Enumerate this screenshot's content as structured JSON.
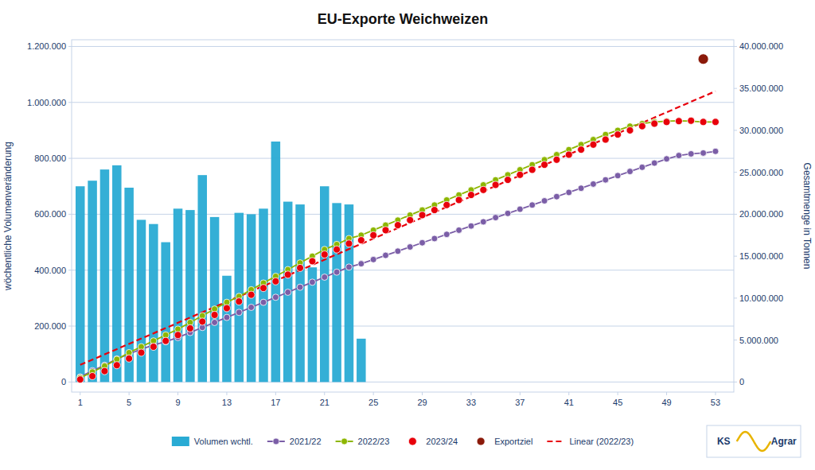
{
  "chart_data": {
    "type": "bar",
    "title": "EU-Exporte Weichweizen",
    "ylabel": "wöchentliche Volumenveränderung",
    "y2label": "Gesamtmenge in Tonnen",
    "annotations": [
      "KS",
      "Agrar"
    ],
    "series": [
      {
        "name": "Volumen wchtl.",
        "type": "bar",
        "color": "#29ABD4",
        "x": [
          1,
          2,
          3,
          4,
          5,
          6,
          7,
          8,
          9,
          10,
          11,
          12,
          13,
          14,
          15,
          16,
          17,
          18,
          19,
          20,
          21,
          22,
          23,
          24
        ],
        "values": [
          700000,
          720000,
          760000,
          775000,
          695000,
          580000,
          565000,
          500000,
          620000,
          615000,
          740000,
          590000,
          380000,
          605000,
          600000,
          620000,
          860000,
          645000,
          635000,
          410000,
          700000,
          640000,
          635000,
          155000
        ]
      },
      {
        "name": "2021/22",
        "type": "line",
        "axis": "y2",
        "color": "#7B5EA7",
        "marker": "circle",
        "line_style": "solid",
        "x": [
          1,
          2,
          3,
          4,
          5,
          6,
          7,
          8,
          9,
          10,
          11,
          12,
          13,
          14,
          15,
          16,
          17,
          18,
          19,
          20,
          21,
          22,
          23,
          24,
          25,
          26,
          27,
          28,
          29,
          30,
          31,
          32,
          33,
          34,
          35,
          36,
          37,
          38,
          39,
          40,
          41,
          42,
          43,
          44,
          45,
          46,
          47,
          48,
          49,
          50,
          51,
          52,
          53
        ],
        "values": [
          600000,
          1350000,
          2000000,
          2750000,
          3350000,
          3900000,
          4400000,
          4800000,
          5300000,
          5900000,
          6500000,
          7100000,
          7700000,
          8300000,
          8900000,
          9500000,
          10100000,
          10700000,
          11300000,
          11900000,
          12500000,
          13100000,
          13700000,
          14100000,
          14600000,
          15100000,
          15600000,
          16100000,
          16600000,
          17100000,
          17600000,
          18100000,
          18600000,
          19100000,
          19600000,
          20100000,
          20600000,
          21100000,
          21600000,
          22100000,
          22600000,
          23100000,
          23600000,
          24100000,
          24600000,
          25100000,
          25600000,
          26100000,
          26600000,
          27000000,
          27200000,
          27300000,
          27500000
        ]
      },
      {
        "name": "2022/23",
        "type": "line",
        "axis": "y2",
        "color": "#8DB600",
        "marker": "circle",
        "line_style": "solid",
        "x": [
          1,
          2,
          3,
          4,
          5,
          6,
          7,
          8,
          9,
          10,
          11,
          12,
          13,
          14,
          15,
          16,
          17,
          18,
          19,
          20,
          21,
          22,
          23,
          24,
          25,
          26,
          27,
          28,
          29,
          30,
          31,
          32,
          33,
          34,
          35,
          36,
          37,
          38,
          39,
          40,
          41,
          42,
          43,
          44,
          45,
          46,
          47,
          48,
          49,
          50,
          51,
          52,
          53
        ],
        "values": [
          500000,
          1200000,
          1900000,
          2700000,
          3500000,
          4200000,
          4900000,
          5600000,
          6300000,
          7100000,
          7900000,
          8700000,
          9500000,
          10200000,
          11000000,
          11800000,
          12600000,
          13400000,
          14200000,
          15000000,
          15800000,
          16400000,
          17100000,
          17500000,
          18100000,
          18700000,
          19300000,
          19900000,
          20500000,
          21100000,
          21700000,
          22300000,
          22900000,
          23500000,
          24100000,
          24700000,
          25300000,
          25900000,
          26500000,
          27100000,
          27700000,
          28300000,
          28900000,
          29500000,
          30000000,
          30500000,
          30800000,
          31000000,
          31100000,
          31150000,
          31100000,
          31000000,
          31000000
        ]
      },
      {
        "name": "2023/24",
        "type": "line",
        "axis": "y2",
        "color": "#E8000B",
        "marker": "circle",
        "line_style": "none",
        "x": [
          1,
          2,
          3,
          4,
          5,
          6,
          7,
          8,
          9,
          10,
          11,
          12,
          13,
          14,
          15,
          16,
          17,
          18,
          19,
          20,
          21,
          22,
          23,
          24,
          25,
          26,
          27,
          28,
          29,
          30,
          31,
          32,
          33,
          34,
          35,
          36,
          37,
          38,
          39,
          40,
          41,
          42,
          43,
          44,
          45,
          46,
          47,
          48,
          49,
          50,
          51,
          52,
          53
        ],
        "values": [
          300000,
          700000,
          1300000,
          2000000,
          2800000,
          3500000,
          4200000,
          4900000,
          5600000,
          6400000,
          7200000,
          8000000,
          8800000,
          9600000,
          10400000,
          11200000,
          12000000,
          12800000,
          13600000,
          14400000,
          15200000,
          15800000,
          16500000,
          16900000,
          17500000,
          18100000,
          18700000,
          19300000,
          19900000,
          20500000,
          21100000,
          21700000,
          22300000,
          22900000,
          23500000,
          24100000,
          24700000,
          25300000,
          25900000,
          26500000,
          27100000,
          27700000,
          28300000,
          28900000,
          29500000,
          30000000,
          30500000,
          30800000,
          31000000,
          31100000,
          31150000,
          31000000,
          31000000
        ]
      },
      {
        "name": "Exportziel",
        "type": "scatter",
        "axis": "y2",
        "color": "#8B1A0A",
        "marker": "circle",
        "x": [
          52
        ],
        "values": [
          38500000
        ]
      },
      {
        "name": "Linear (2022/23)",
        "type": "line",
        "axis": "y2",
        "color": "#E8000B",
        "line_style": "dashed",
        "x": [
          1,
          53
        ],
        "values": [
          2037526.2,
          34666247.4
        ]
      }
    ],
    "xlim": [
      0.3,
      54.5
    ],
    "xticks": [
      1,
      5,
      9,
      13,
      17,
      21,
      25,
      29,
      33,
      37,
      41,
      45,
      49,
      53
    ],
    "ylim": [
      -36000,
      1224000
    ],
    "yticks": [
      0,
      {
        "value": 200000,
        "label": "200.000"
      },
      {
        "value": 400000,
        "label": "400.000"
      },
      {
        "value": 600000,
        "label": "600.000"
      },
      {
        "value": 800000,
        "label": "800.000"
      },
      {
        "value": 1000000,
        "label": "1.000.000"
      },
      {
        "value": 1200000,
        "label": "1.200.000"
      }
    ],
    "y2lim": [
      -1200000,
      40800000
    ],
    "y2ticks": [
      0,
      {
        "value": 5000000,
        "label": "5.000.000"
      },
      {
        "value": 10000000,
        "label": "10.000.000"
      },
      {
        "value": 15000000,
        "label": "15.000.000"
      },
      {
        "value": 20000000,
        "label": "20.000.000"
      },
      {
        "value": 25000000,
        "label": "25.000.000"
      },
      {
        "value": 30000000,
        "label": "30.000.000"
      },
      {
        "value": 35000000,
        "label": "35.000.000"
      },
      {
        "value": 40000000,
        "label": "40.000.000"
      }
    ],
    "grid": true,
    "legend": "bottom"
  }
}
